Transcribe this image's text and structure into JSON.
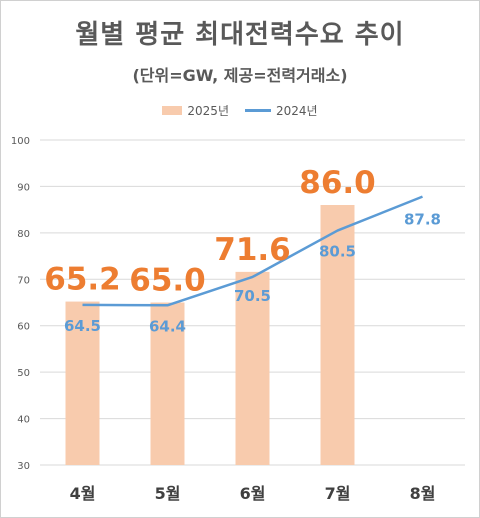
{
  "chart_data": {
    "type": "bar",
    "title": "월별 평균 최대전력수요 추이",
    "subtitle": "(단위=GW, 제공=전력거래소)",
    "categories": [
      "4월",
      "5월",
      "6월",
      "7월",
      "8월"
    ],
    "ylim": [
      30,
      100
    ],
    "yticks": [
      30,
      40,
      50,
      60,
      70,
      80,
      90,
      100
    ],
    "grid": true,
    "legend_position": "top",
    "series": [
      {
        "name": "2025년",
        "type": "bar",
        "color": "#f8cbad",
        "label_color": "#ed7d31",
        "values": [
          65.2,
          65.0,
          71.6,
          86.0,
          null
        ],
        "labels": [
          "65.2",
          "65.0",
          "71.6",
          "86.0",
          ""
        ]
      },
      {
        "name": "2024년",
        "type": "line",
        "color": "#5b9bd5",
        "label_color": "#5b9bd5",
        "values": [
          64.5,
          64.4,
          70.5,
          80.5,
          87.8
        ],
        "labels": [
          "64.5",
          "64.4",
          "70.5",
          "80.5",
          "87.8"
        ]
      }
    ]
  }
}
